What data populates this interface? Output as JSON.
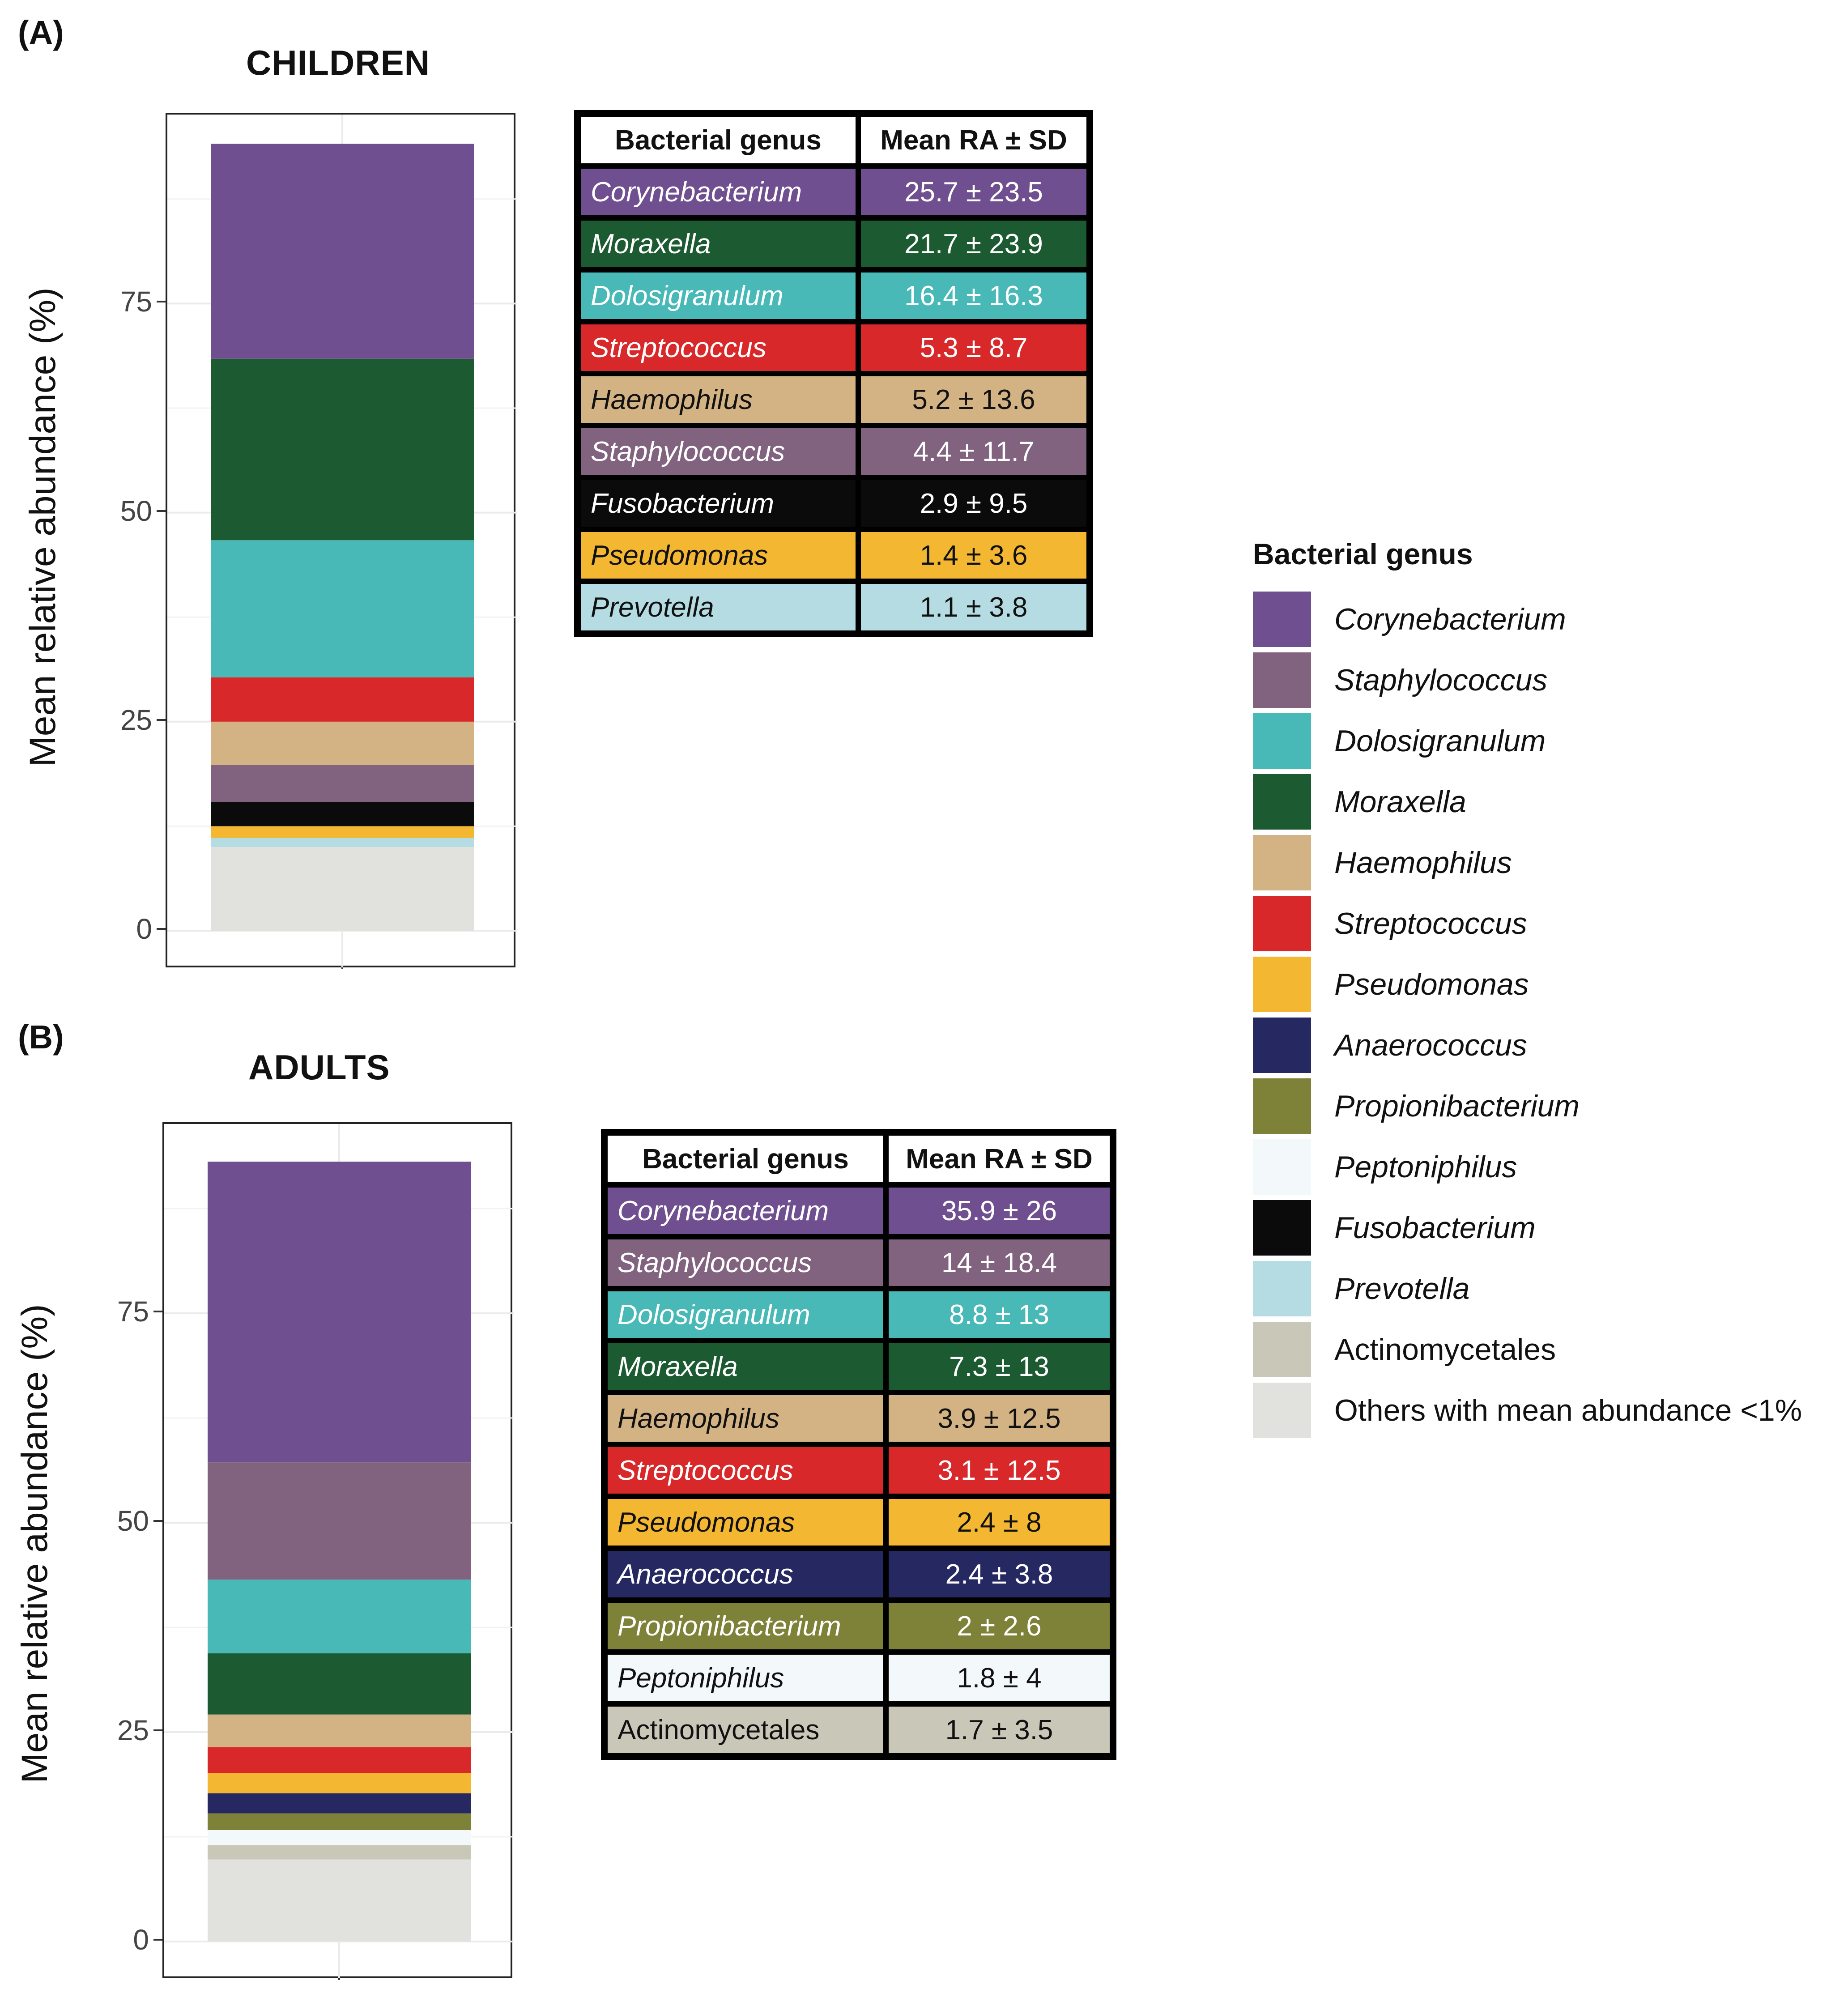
{
  "colors": {
    "Corynebacterium": "#6f4f8f",
    "Staphylococcus": "#81627f",
    "Dolosigranulum": "#48b9b7",
    "Moraxella": "#1c5b31",
    "Haemophilus": "#d3b384",
    "Streptococcus": "#d8282a",
    "Pseudomonas": "#f4b731",
    "Anaerococcus": "#262862",
    "Propionibacterium": "#7e8239",
    "Peptoniphilus": "#f3f8fb",
    "Fusobacterium": "#0b0b0b",
    "Prevotella": "#b5dce2",
    "Actinomycetales": "#c9c7b7",
    "Others": "#e1e2dd"
  },
  "text_colors": {
    "Corynebacterium": "#ffffff",
    "Staphylococcus": "#ffffff",
    "Dolosigranulum": "#ffffff",
    "Moraxella": "#ffffff",
    "Haemophilus": "#111111",
    "Streptococcus": "#ffffff",
    "Pseudomonas": "#111111",
    "Anaerococcus": "#ffffff",
    "Propionibacterium": "#ffffff",
    "Peptoniphilus": "#111111",
    "Fusobacterium": "#ffffff",
    "Prevotella": "#111111",
    "Actinomycetales": "#111111"
  },
  "panel_a": {
    "label": "(A)",
    "title": "CHILDREN"
  },
  "panel_b": {
    "label": "(B)",
    "title": "ADULTS"
  },
  "table_headers": {
    "genus": "Bacterial genus",
    "mean": "Mean RA ± SD"
  },
  "table_a": [
    {
      "genus": "Corynebacterium",
      "value": "25.7 ± 23.5"
    },
    {
      "genus": "Moraxella",
      "value": "21.7 ± 23.9"
    },
    {
      "genus": "Dolosigranulum",
      "value": "16.4 ± 16.3"
    },
    {
      "genus": "Streptococcus",
      "value": "5.3 ± 8.7"
    },
    {
      "genus": "Haemophilus",
      "value": "5.2 ± 13.6"
    },
    {
      "genus": "Staphylococcus",
      "value": "4.4 ± 11.7"
    },
    {
      "genus": "Fusobacterium",
      "value": "2.9 ± 9.5"
    },
    {
      "genus": "Pseudomonas",
      "value": "1.4 ± 3.6"
    },
    {
      "genus": "Prevotella",
      "value": "1.1 ± 3.8"
    }
  ],
  "table_b": [
    {
      "genus": "Corynebacterium",
      "value": "35.9 ± 26"
    },
    {
      "genus": "Staphylococcus",
      "value": "14 ± 18.4"
    },
    {
      "genus": "Dolosigranulum",
      "value": "8.8 ± 13"
    },
    {
      "genus": "Moraxella",
      "value": "7.3 ± 13"
    },
    {
      "genus": "Haemophilus",
      "value": "3.9 ± 12.5"
    },
    {
      "genus": "Streptococcus",
      "value": "3.1 ± 12.5"
    },
    {
      "genus": "Pseudomonas",
      "value": "2.4 ± 8"
    },
    {
      "genus": "Anaerococcus",
      "value": "2.4 ± 3.8"
    },
    {
      "genus": "Propionibacterium",
      "value": "2 ± 2.6"
    },
    {
      "genus": "Peptoniphilus",
      "value": "1.8 ± 4"
    },
    {
      "genus": "Actinomycetales",
      "value": "1.7 ± 3.5"
    }
  ],
  "legend": {
    "title": "Bacterial genus",
    "items": [
      {
        "key": "Corynebacterium",
        "label": "Corynebacterium",
        "italic": true
      },
      {
        "key": "Staphylococcus",
        "label": "Staphylococcus",
        "italic": true
      },
      {
        "key": "Dolosigranulum",
        "label": "Dolosigranulum",
        "italic": true
      },
      {
        "key": "Moraxella",
        "label": "Moraxella",
        "italic": true
      },
      {
        "key": "Haemophilus",
        "label": "Haemophilus",
        "italic": true
      },
      {
        "key": "Streptococcus",
        "label": "Streptococcus",
        "italic": true
      },
      {
        "key": "Pseudomonas",
        "label": "Pseudomonas",
        "italic": true
      },
      {
        "key": "Anaerococcus",
        "label": "Anaerococcus",
        "italic": true
      },
      {
        "key": "Propionibacterium",
        "label": "Propionibacterium",
        "italic": true
      },
      {
        "key": "Peptoniphilus",
        "label": "Peptoniphilus",
        "italic": true
      },
      {
        "key": "Fusobacterium",
        "label": "Fusobacterium",
        "italic": true
      },
      {
        "key": "Prevotella",
        "label": "Prevotella",
        "italic": true
      },
      {
        "key": "Actinomycetales",
        "label": "Actinomycetales",
        "italic": false
      },
      {
        "key": "Others",
        "label": "Others with mean abundance <1%",
        "italic": false
      }
    ]
  },
  "chart_data": [
    {
      "type": "bar",
      "stacked": true,
      "title": "CHILDREN",
      "ylabel": "Mean relative abundance (%)",
      "ylim": [
        0,
        100
      ],
      "yticks": [
        0,
        25,
        50,
        75
      ],
      "series": [
        {
          "name": "Others",
          "value": 10.0
        },
        {
          "name": "Prevotella",
          "value": 1.1
        },
        {
          "name": "Pseudomonas",
          "value": 1.4
        },
        {
          "name": "Fusobacterium",
          "value": 2.9
        },
        {
          "name": "Staphylococcus",
          "value": 4.4
        },
        {
          "name": "Haemophilus",
          "value": 5.2
        },
        {
          "name": "Streptococcus",
          "value": 5.3
        },
        {
          "name": "Dolosigranulum",
          "value": 16.4
        },
        {
          "name": "Moraxella",
          "value": 21.7
        },
        {
          "name": "Corynebacterium",
          "value": 25.7
        }
      ]
    },
    {
      "type": "bar",
      "stacked": true,
      "title": "ADULTS",
      "ylabel": "Mean relative abundance (%)",
      "ylim": [
        0,
        100
      ],
      "yticks": [
        0,
        25,
        50,
        75
      ],
      "series": [
        {
          "name": "Others",
          "value": 9.8
        },
        {
          "name": "Actinomycetales",
          "value": 1.7
        },
        {
          "name": "Peptoniphilus",
          "value": 1.8
        },
        {
          "name": "Propionibacterium",
          "value": 2.0
        },
        {
          "name": "Anaerococcus",
          "value": 2.4
        },
        {
          "name": "Pseudomonas",
          "value": 2.4
        },
        {
          "name": "Streptococcus",
          "value": 3.1
        },
        {
          "name": "Haemophilus",
          "value": 3.9
        },
        {
          "name": "Moraxella",
          "value": 7.3
        },
        {
          "name": "Dolosigranulum",
          "value": 8.8
        },
        {
          "name": "Staphylococcus",
          "value": 14.0
        },
        {
          "name": "Corynebacterium",
          "value": 35.9
        }
      ]
    }
  ]
}
